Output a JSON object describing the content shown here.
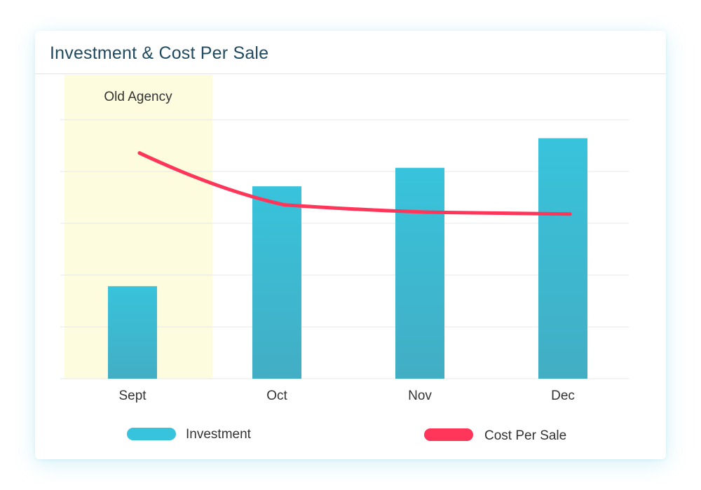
{
  "card": {
    "title": "Investment & Cost Per Sale"
  },
  "colors": {
    "investment": "#38c3dc",
    "investment_bottom": "#42aec4",
    "cost_per_sale": "#ff3559",
    "highlight_band": "#fdfcdf",
    "gridline": "#e6e8ea"
  },
  "chart_data": {
    "type": "bar",
    "categories": [
      "Sept",
      "Oct",
      "Nov",
      "Dec"
    ],
    "series": [
      {
        "name": "Investment",
        "type": "bar",
        "values": [
          25,
          52,
          57,
          65
        ]
      },
      {
        "name": "Cost Per Sale",
        "type": "line",
        "values": [
          61,
          47,
          45,
          44.5
        ]
      }
    ],
    "ylim": [
      0,
      70
    ],
    "yticks_count": 5,
    "grid": true,
    "annotation": {
      "text": "Old Agency",
      "category": "Sept"
    },
    "legend": {
      "position": "bottom"
    },
    "title": "Investment & Cost Per Sale"
  }
}
